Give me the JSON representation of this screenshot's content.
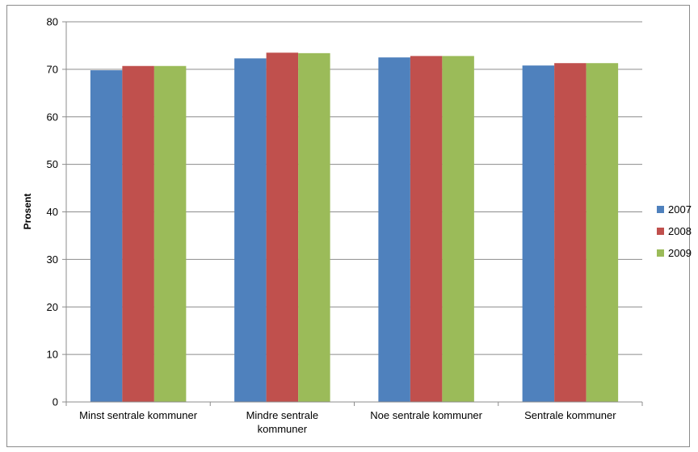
{
  "chart_data": {
    "type": "bar",
    "title": "",
    "xlabel": "",
    "ylabel": "Prosent",
    "ylim": [
      0,
      80
    ],
    "yticks": [
      0,
      10,
      20,
      30,
      40,
      50,
      60,
      70,
      80
    ],
    "grid": true,
    "legend_position": "right",
    "categories": [
      [
        "Minst sentrale kommuner"
      ],
      [
        "Mindre sentrale",
        "kommuner"
      ],
      [
        "Noe sentrale kommuner"
      ],
      [
        "Sentrale kommuner"
      ]
    ],
    "series": [
      {
        "name": "2007",
        "color": "#4f81bd",
        "values": [
          69.8,
          72.3,
          72.5,
          70.8
        ]
      },
      {
        "name": "2008",
        "color": "#c0504d",
        "values": [
          70.7,
          73.5,
          72.8,
          71.3
        ]
      },
      {
        "name": "2009",
        "color": "#9bbb59",
        "values": [
          70.7,
          73.4,
          72.8,
          71.3
        ]
      }
    ]
  }
}
